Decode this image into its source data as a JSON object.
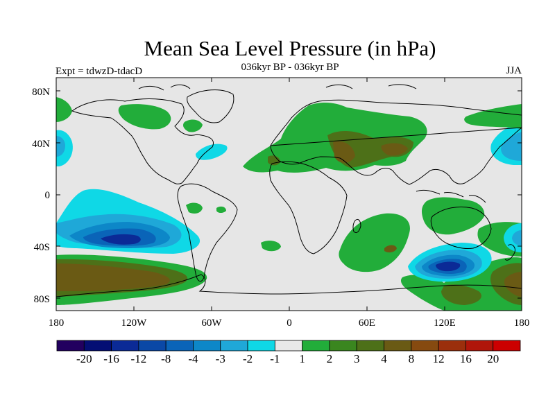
{
  "title": "Mean Sea Level Pressure (in hPa)",
  "subtitle": "036kyr BP - 036kyr BP",
  "left_label": "Expt = tdwzD-tdacD",
  "right_label": "JJA",
  "axes": {
    "lon_ticks": [
      "180",
      "120W",
      "60W",
      "0",
      "60E",
      "120E",
      "180"
    ],
    "lat_ticks": [
      "80N",
      "40N",
      "0",
      "40S",
      "80S"
    ]
  },
  "colorbar": {
    "colors": [
      "#22005f",
      "#040e74",
      "#0b2a96",
      "#0a48a6",
      "#0a64b8",
      "#0d87c8",
      "#1fa8d8",
      "#0fd8e6",
      "#e8e8e8",
      "#22ad3a",
      "#3a861f",
      "#4d7018",
      "#6a5a14",
      "#864a10",
      "#9b2f0c",
      "#b0160a",
      "#cc0000"
    ],
    "labels": [
      "-20",
      "-16",
      "-12",
      "-8",
      "-4",
      "-3",
      "-2",
      "-1",
      "1",
      "2",
      "3",
      "4",
      "8",
      "12",
      "16",
      "20"
    ]
  }
}
